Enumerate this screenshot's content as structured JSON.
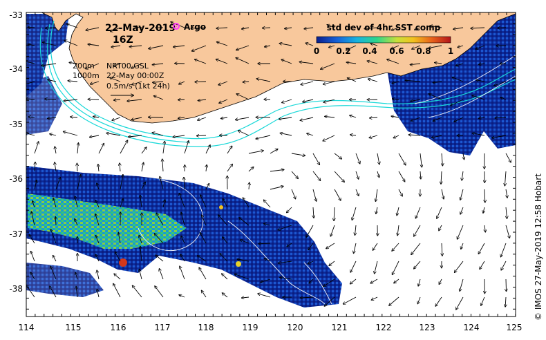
{
  "title": {
    "date": "22-May-2019",
    "time": "16Z",
    "argo_label": "Argo"
  },
  "annotations": {
    "depth_200": "200m",
    "depth_1000": "1000m",
    "product": "NRT00 GSL",
    "product_time": "22-May 00:00Z",
    "vector_scale": "0.5m/s (1kt 24h)"
  },
  "colorbar": {
    "title": "std dev of 4hr SST comp",
    "ticks": [
      "0",
      "0.2",
      "0.4",
      "0.6",
      "0.8",
      "1"
    ],
    "range": [
      0,
      1
    ],
    "colors": [
      "#0a1e8c",
      "#1560d8",
      "#17b2e0",
      "#2ed68a",
      "#c8e03a",
      "#f2c21e",
      "#e8621a",
      "#b3141a"
    ]
  },
  "credit": "© IMOS 27-May-2019 12:58 Hobart",
  "axes": {
    "x_ticks": [
      "114",
      "115",
      "116",
      "117",
      "118",
      "119",
      "120",
      "121",
      "122",
      "123",
      "124",
      "125"
    ],
    "y_ticks": [
      "-33",
      "-34",
      "-35",
      "-36",
      "-37",
      "-38"
    ]
  },
  "colors": {
    "land": "#f8c89c",
    "isobath": "#19d8d8",
    "argo": "#ff33ff",
    "sst_low": "#0a1e8c",
    "sst_mid": "#17b2e0",
    "sst_high": "#c8e03a"
  }
}
